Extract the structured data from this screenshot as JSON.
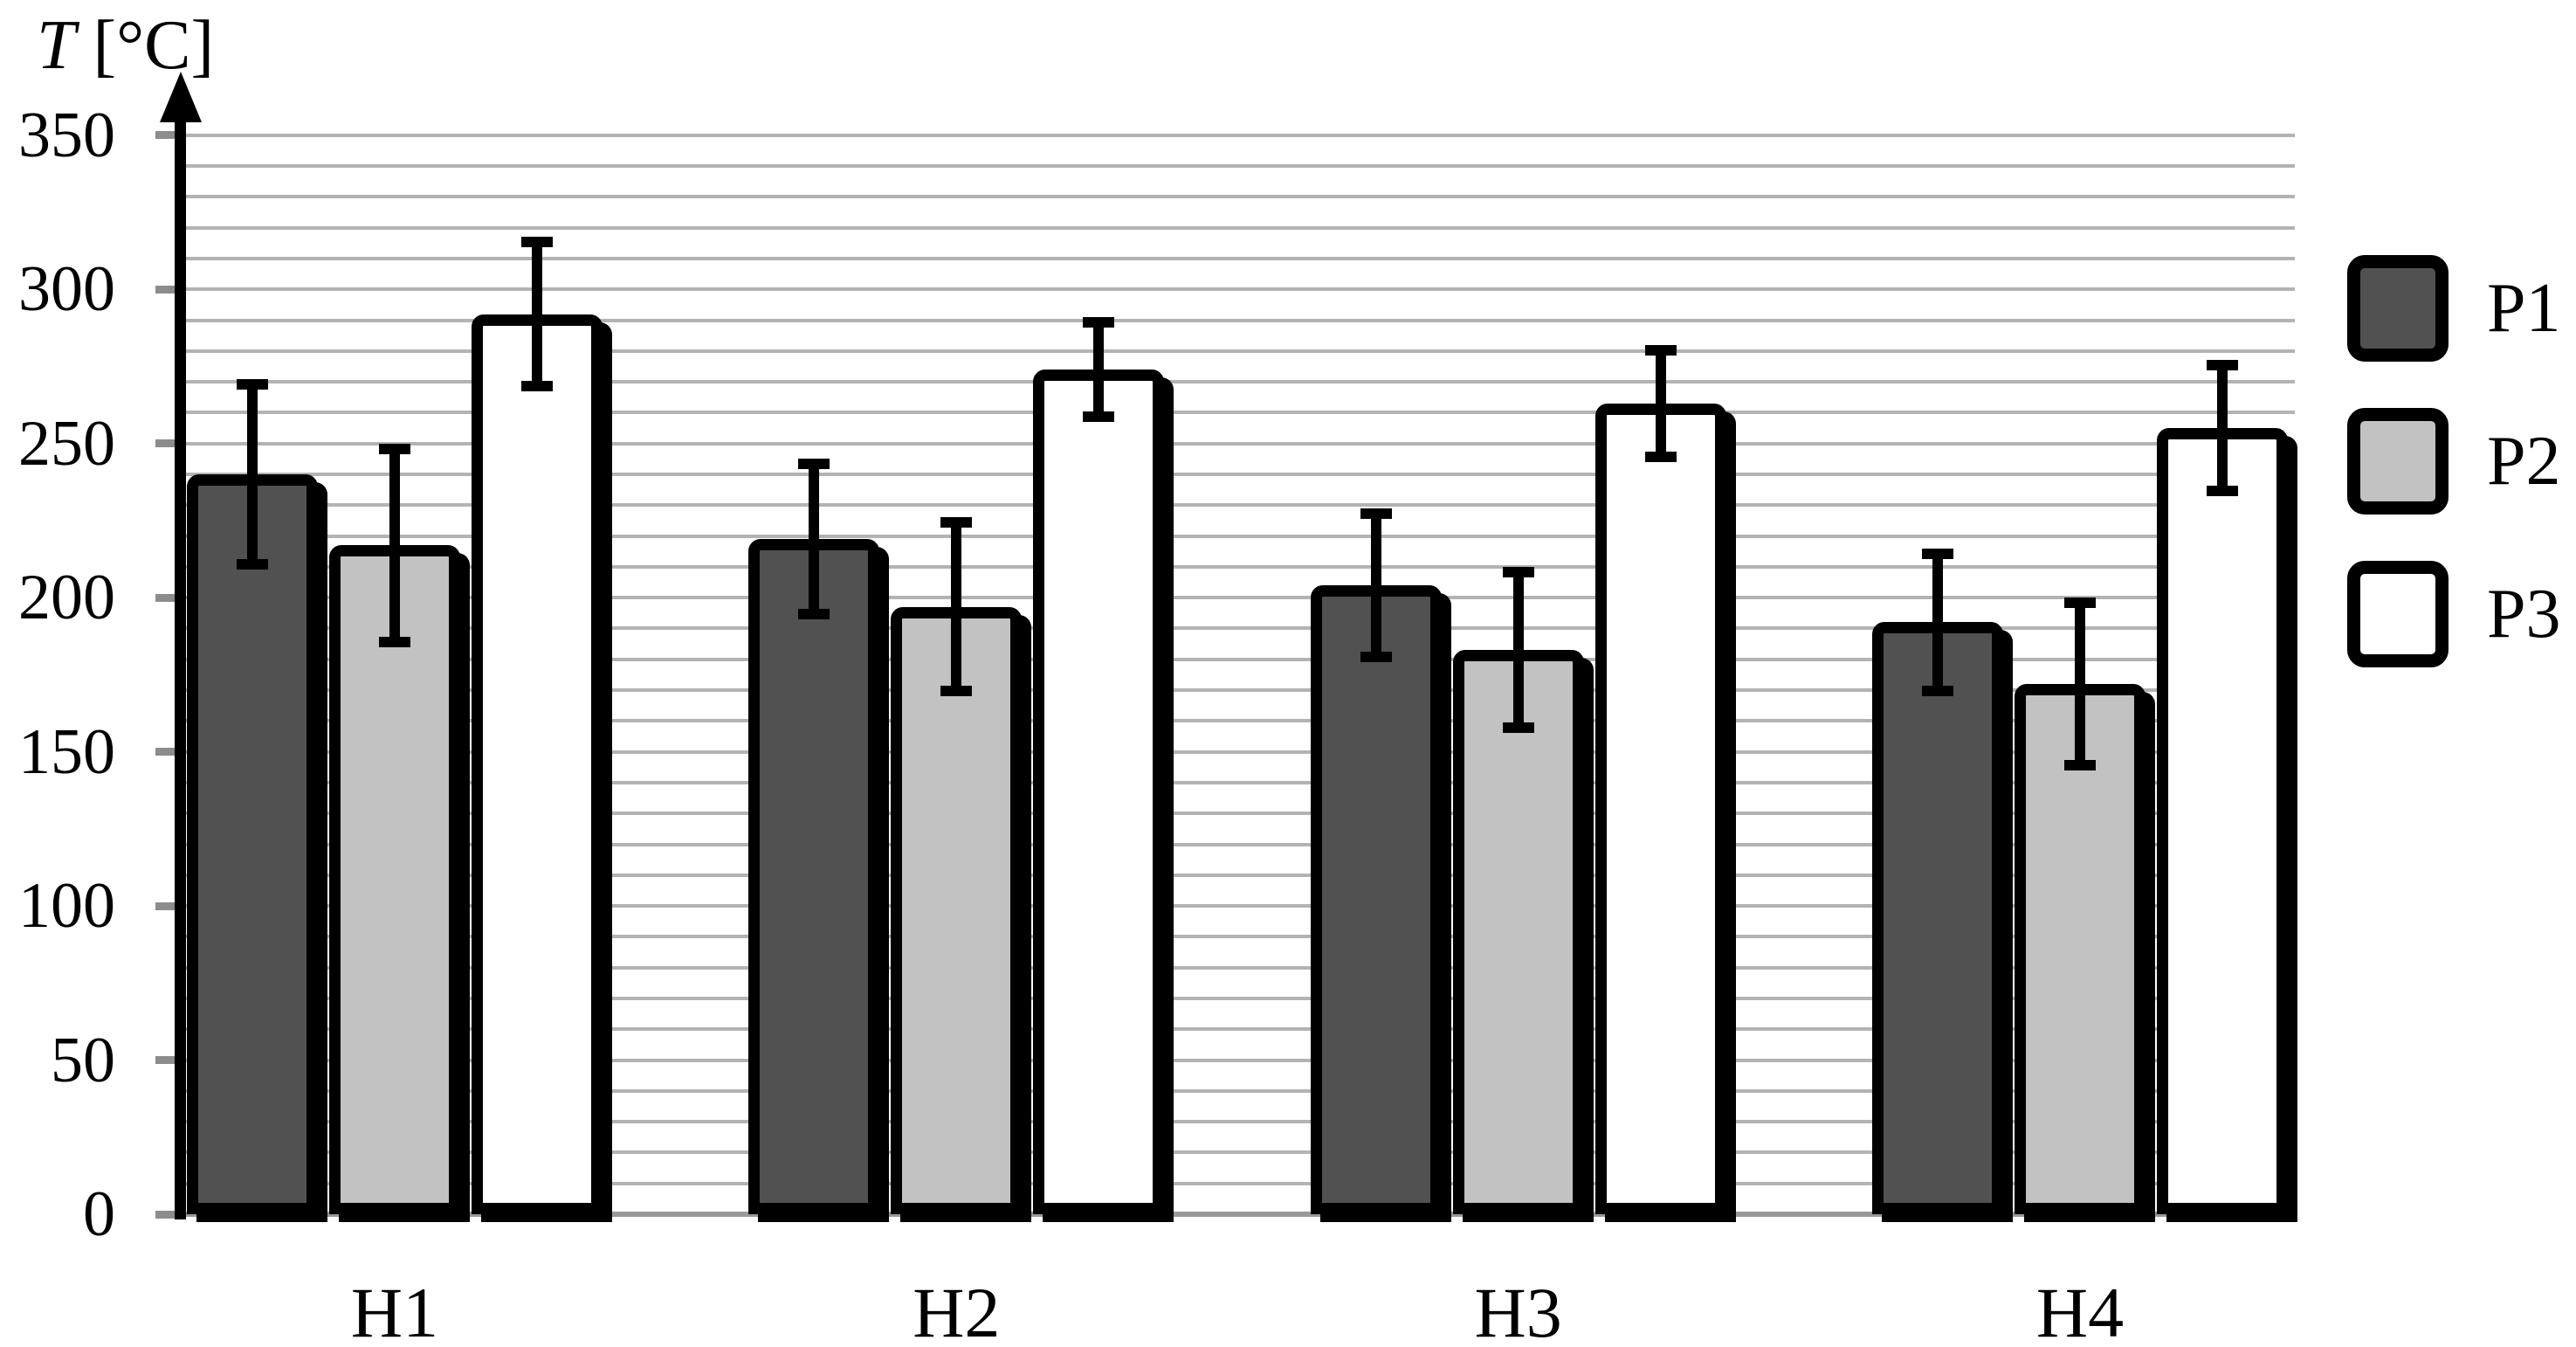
{
  "chart_data": {
    "type": "bar",
    "title": "",
    "ylabel": "T [°C]",
    "ylabel_italic": "T",
    "ylabel_unit": " [°C]",
    "categories": [
      "H1",
      "H2",
      "H3",
      "H4"
    ],
    "series": [
      {
        "name": "P1",
        "color": "#515151",
        "values": [
          240,
          219,
          204,
          192
        ],
        "errors": [
          31,
          26,
          25,
          24
        ]
      },
      {
        "name": "P2",
        "color": "#c2c2c2",
        "values": [
          217,
          197,
          183,
          172
        ],
        "errors": [
          33,
          29,
          27,
          28
        ]
      },
      {
        "name": "P3",
        "color": "#ffffff",
        "values": [
          292,
          274,
          263,
          255
        ],
        "errors": [
          25,
          17,
          19,
          22
        ]
      }
    ],
    "ylim": [
      0,
      350
    ],
    "ytick_step": 50,
    "ytick_labels": [
      "350",
      "300",
      "250",
      "200",
      "150",
      "100",
      "50",
      "0"
    ],
    "grid_step": 10,
    "grid_on": true,
    "legend_position": "right",
    "error_bars": true,
    "colors": {
      "bar_border": "#000000",
      "gridline": "#b3b3b3",
      "baseline": "#999999",
      "tick_stub": "#8c8c8c",
      "text": "#000000",
      "background": "#ffffff"
    }
  }
}
